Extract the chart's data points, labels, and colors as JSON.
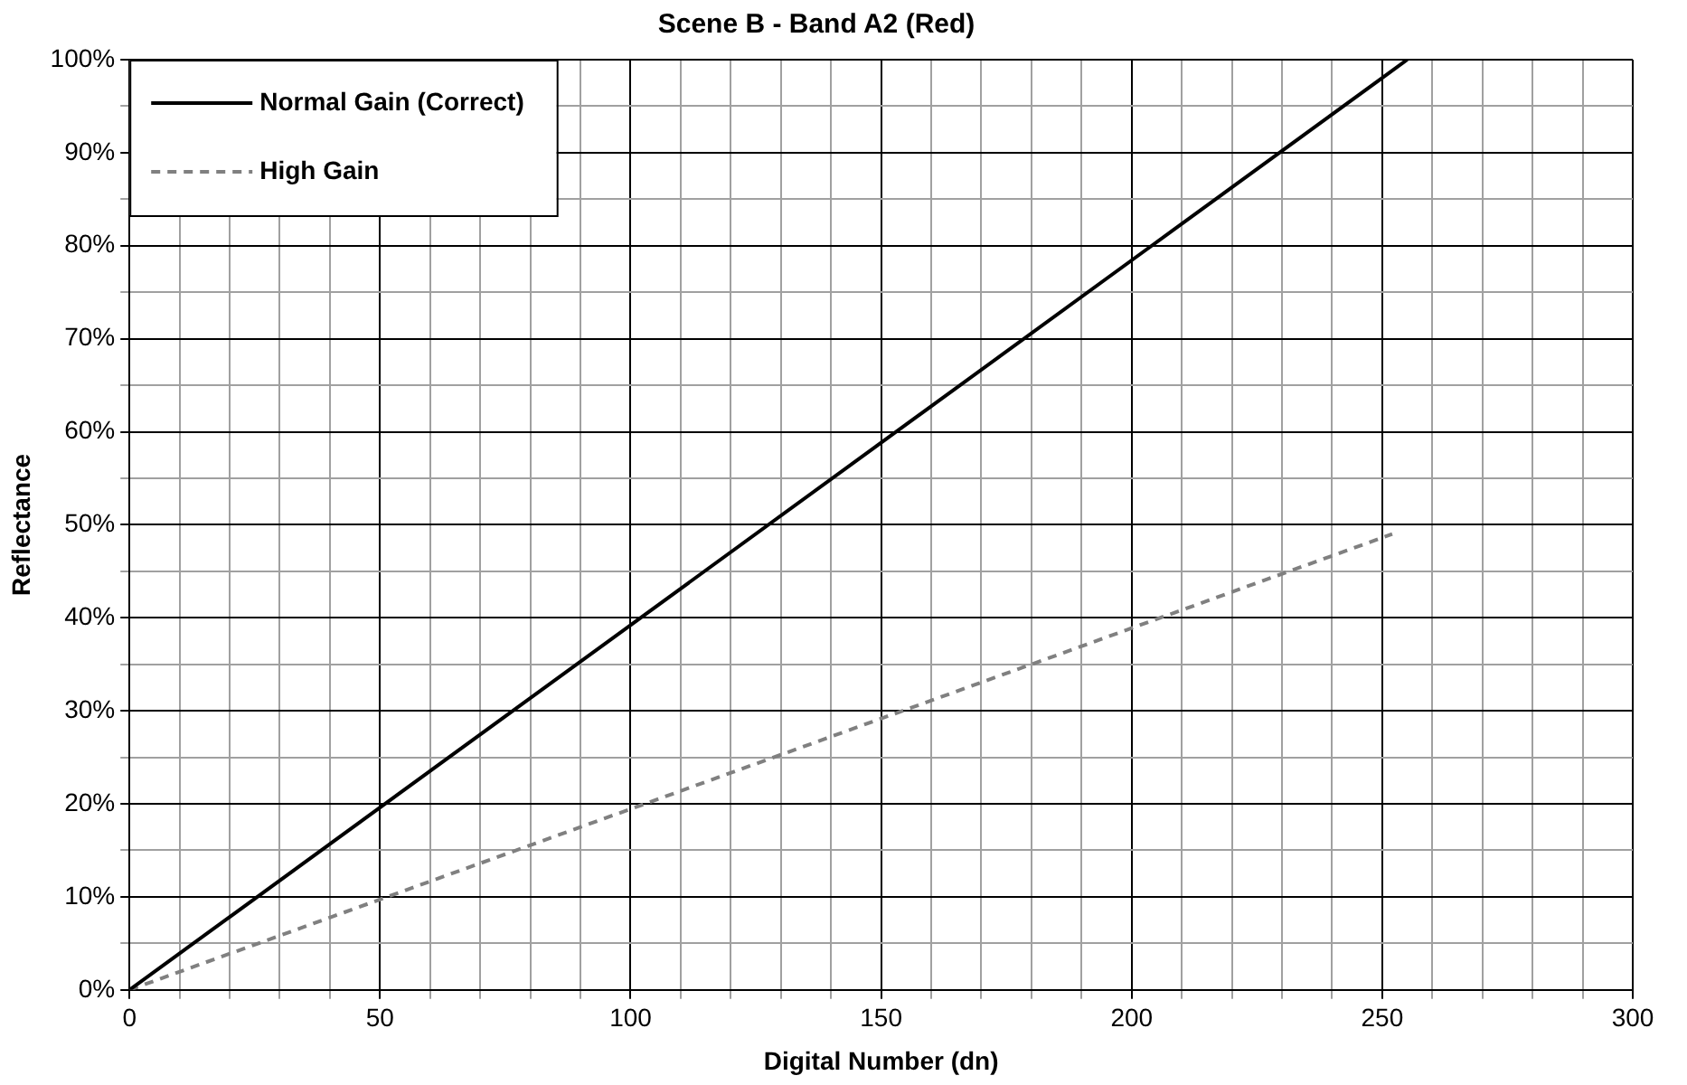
{
  "chart_data": {
    "type": "line",
    "title": "Scene B - Band A2 (Red)",
    "xlabel": "Digital Number (dn)",
    "ylabel": "Reflectance",
    "series": [
      {
        "name": "Normal Gain (Correct)",
        "color": "#000000",
        "x": [
          0,
          255
        ],
        "values": [
          0,
          100
        ],
        "line_style": "solid"
      },
      {
        "name": "High Gain",
        "color": "#808080",
        "x": [
          0,
          252
        ],
        "values": [
          0,
          49
        ],
        "line_style": "dashed"
      }
    ],
    "xlim": [
      0,
      300
    ],
    "xticks": [
      0,
      {
        "value": 10,
        "label": null
      },
      {
        "value": 20,
        "label": null
      },
      {
        "value": 30,
        "label": null
      },
      {
        "value": 40,
        "label": null
      },
      50,
      {
        "value": 60,
        "label": null
      },
      {
        "value": 70,
        "label": null
      },
      {
        "value": 80,
        "label": null
      },
      {
        "value": 90,
        "label": null
      },
      100,
      {
        "value": 110,
        "label": null
      },
      {
        "value": 120,
        "label": null
      },
      {
        "value": 130,
        "label": null
      },
      {
        "value": 140,
        "label": null
      },
      150,
      {
        "value": 160,
        "label": null
      },
      {
        "value": 170,
        "label": null
      },
      {
        "value": 180,
        "label": null
      },
      {
        "value": 190,
        "label": null
      },
      200,
      {
        "value": 210,
        "label": null
      },
      {
        "value": 220,
        "label": null
      },
      {
        "value": 230,
        "label": null
      },
      {
        "value": 240,
        "label": null
      },
      250,
      {
        "value": 260,
        "label": null
      },
      {
        "value": 270,
        "label": null
      },
      {
        "value": 280,
        "label": null
      },
      {
        "value": 290,
        "label": null
      },
      300
    ],
    "ylim": [
      0,
      100
    ],
    "yticks": [
      {
        "value": 0,
        "label": "0%"
      },
      {
        "value": 5,
        "label": null
      },
      {
        "value": 10,
        "label": "10%"
      },
      {
        "value": 15,
        "label": null
      },
      {
        "value": 20,
        "label": "20%"
      },
      {
        "value": 25,
        "label": null
      },
      {
        "value": 30,
        "label": "30%"
      },
      {
        "value": 35,
        "label": null
      },
      {
        "value": 40,
        "label": "40%"
      },
      {
        "value": 45,
        "label": null
      },
      {
        "value": 50,
        "label": "50%"
      },
      {
        "value": 55,
        "label": null
      },
      {
        "value": 60,
        "label": "60%"
      },
      {
        "value": 65,
        "label": null
      },
      {
        "value": 70,
        "label": "70%"
      },
      {
        "value": 75,
        "label": null
      },
      {
        "value": 80,
        "label": "80%"
      },
      {
        "value": 85,
        "label": null
      },
      {
        "value": 90,
        "label": "90%"
      },
      {
        "value": 95,
        "label": null
      },
      {
        "value": 100,
        "label": "100%"
      }
    ],
    "grid": true,
    "legend": "top left",
    "marker": "none"
  }
}
